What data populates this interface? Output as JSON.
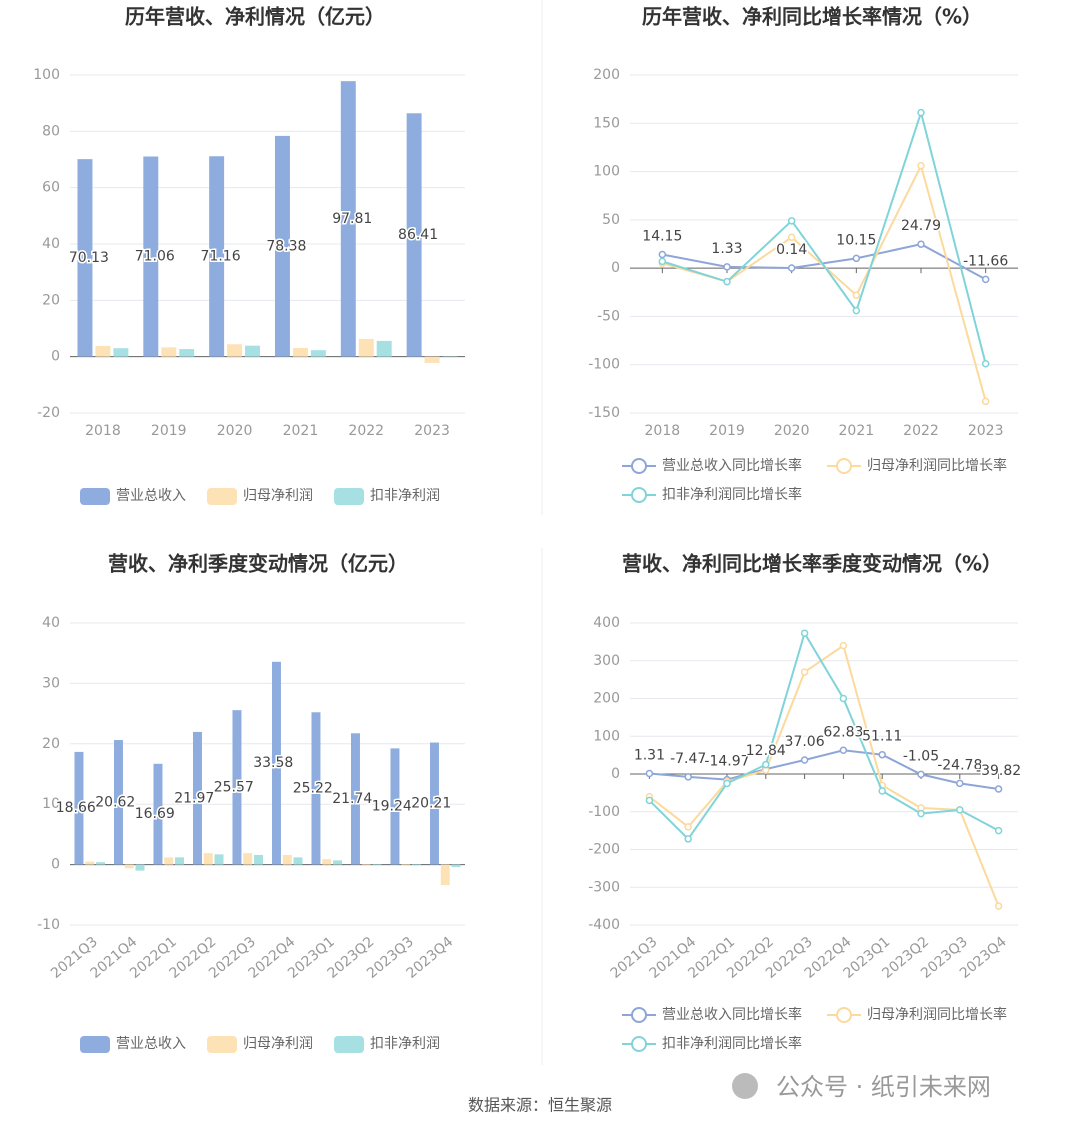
{
  "chart_data": [
    {
      "type": "bar",
      "title": "历年营收、净利情况（亿元）",
      "categories": [
        "2018",
        "2019",
        "2020",
        "2021",
        "2022",
        "2023"
      ],
      "series": [
        {
          "name": "营业总收入",
          "color": "#8eadde",
          "values": [
            70.13,
            71.06,
            71.16,
            78.38,
            97.81,
            86.41
          ],
          "labels": true
        },
        {
          "name": "归母净利润",
          "color": "#fde2b5",
          "values": [
            3.8,
            3.3,
            4.4,
            3.1,
            6.3,
            -2.2
          ]
        },
        {
          "name": "扣非净利润",
          "color": "#a6e0e2",
          "values": [
            3.0,
            2.7,
            3.9,
            2.3,
            5.6,
            -0.3
          ]
        }
      ],
      "ylim": [
        -20,
        100
      ],
      "yticks": [
        -20,
        0,
        20,
        40,
        60,
        80,
        100
      ],
      "grid": true
    },
    {
      "type": "line",
      "title": "历年营收、净利同比增长率情况（%）",
      "categories": [
        "2018",
        "2019",
        "2020",
        "2021",
        "2022",
        "2023"
      ],
      "series": [
        {
          "name": "营业总收入同比增长率",
          "color": "#8ea5d8",
          "values": [
            14.15,
            1.33,
            0.14,
            10.15,
            24.79,
            -11.66
          ],
          "labels": true
        },
        {
          "name": "归母净利润同比增长率",
          "color": "#fcd99c",
          "values": [
            5,
            -14,
            32,
            -28,
            106,
            -138
          ]
        },
        {
          "name": "扣非净利润同比增长率",
          "color": "#80d4d9",
          "values": [
            7,
            -14,
            49,
            -44,
            161,
            -99
          ]
        }
      ],
      "ylim": [
        -150,
        200
      ],
      "yticks": [
        -150,
        -100,
        -50,
        0,
        50,
        100,
        150,
        200
      ],
      "grid": true
    },
    {
      "type": "bar",
      "title": "营收、净利季度变动情况（亿元）",
      "categories": [
        "2021Q3",
        "2021Q4",
        "2022Q1",
        "2022Q2",
        "2022Q3",
        "2022Q4",
        "2023Q1",
        "2023Q2",
        "2023Q3",
        "2023Q4"
      ],
      "series": [
        {
          "name": "营业总收入",
          "color": "#8eadde",
          "values": [
            18.66,
            20.62,
            16.69,
            21.97,
            25.57,
            33.58,
            25.22,
            21.74,
            19.24,
            20.21
          ],
          "labels": true
        },
        {
          "name": "归母净利润",
          "color": "#fde2b5",
          "values": [
            0.5,
            -0.6,
            1.2,
            1.9,
            1.9,
            1.6,
            0.9,
            0.1,
            0.1,
            -3.4
          ]
        },
        {
          "name": "扣非净利润",
          "color": "#a6e0e2",
          "values": [
            0.4,
            -1.0,
            1.2,
            1.7,
            1.6,
            1.2,
            0.7,
            0.1,
            0.1,
            -0.4
          ]
        }
      ],
      "ylim": [
        -10,
        40
      ],
      "yticks": [
        -10,
        0,
        10,
        20,
        30,
        40
      ],
      "grid": true
    },
    {
      "type": "line",
      "title": "营收、净利同比增长率季度变动情况（%）",
      "categories": [
        "2021Q3",
        "2021Q4",
        "2022Q1",
        "2022Q2",
        "2022Q3",
        "2022Q4",
        "2023Q1",
        "2023Q2",
        "2023Q3",
        "2023Q4"
      ],
      "series": [
        {
          "name": "营业总收入同比增长率",
          "color": "#8ea5d8",
          "values": [
            1.31,
            -7.47,
            -14.97,
            12.84,
            37.06,
            62.83,
            51.11,
            -1.05,
            -24.78,
            -39.82
          ],
          "labels": true
        },
        {
          "name": "归母净利润同比增长率",
          "color": "#fcd99c",
          "values": [
            -60,
            -140,
            -20,
            10,
            270,
            340,
            -30,
            -90,
            -95,
            -350
          ]
        },
        {
          "name": "扣非净利润同比增长率",
          "color": "#80d4d9",
          "values": [
            -70,
            -172,
            -25,
            25,
            373,
            200,
            -45,
            -105,
            -95,
            -150
          ]
        }
      ],
      "ylim": [
        -400,
        400
      ],
      "yticks": [
        -400,
        -300,
        -200,
        -100,
        0,
        100,
        200,
        300,
        400
      ],
      "grid": true
    }
  ],
  "source": "数据来源：恒生聚源",
  "watermark": "公众号 · 纸引未来网"
}
